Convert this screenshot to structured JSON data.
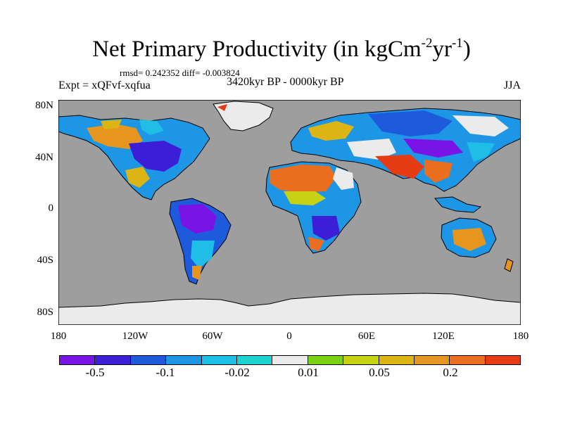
{
  "title": {
    "main": "Net Primary Productivity (in kgCm",
    "exp1": "-2",
    "mid": "yr",
    "exp2": "-1",
    "close": ")"
  },
  "stats": "rmsd= 0.242352 diff= -0.003824",
  "expt": "Expt = xQFvf-xqfua",
  "period": "3420kyr BP - 0000kyr BP",
  "season": "JJA",
  "y_labels": [
    "80N",
    "40N",
    "0",
    "40S",
    "80S"
  ],
  "x_labels": [
    "180",
    "120W",
    "60W",
    "0",
    "60E",
    "120E",
    "180"
  ],
  "colors": {
    "ocean": "#9e9e9e",
    "ice": "#ebebeb",
    "scale": [
      "#7a14e6",
      "#3c1ed7",
      "#1e5adc",
      "#1e96e6",
      "#1ebee6",
      "#1ed2d2",
      "#ebebeb",
      "#78d214",
      "#c8d214",
      "#dcb414",
      "#e6961e",
      "#eb6e1e",
      "#e63c14"
    ]
  },
  "colorbar_labels": [
    "-0.5",
    "-0.1",
    "-0.02",
    "0.01",
    "0.05",
    "0.2"
  ]
}
